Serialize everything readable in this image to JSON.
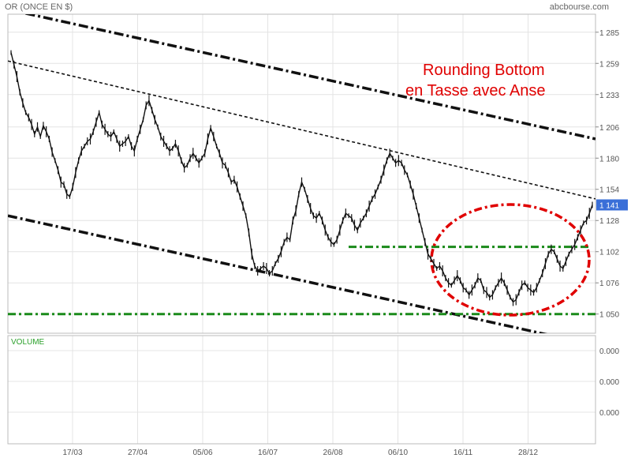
{
  "header": {
    "instrument": "OR (ONCE EN $)",
    "source": "abcbourse.com"
  },
  "annotation": {
    "line1": "Rounding Bottom",
    "line2": "en Tasse avec Anse",
    "color": "#e00000"
  },
  "volume_panel": {
    "label": "VOLUME",
    "ticks": [
      "0.000",
      "0.000",
      "0.000"
    ]
  },
  "colors": {
    "price": "#111111",
    "grid": "#e4e4e4",
    "support": "#1a8a1a",
    "last_price_badge": "#3a6fd8",
    "ellipse": "#e00000"
  },
  "chart_data": {
    "type": "line",
    "title": "OR (ONCE EN $)",
    "x_tick_labels": [
      "17/03",
      "27/04",
      "05/06",
      "16/07",
      "26/08",
      "06/10",
      "16/11",
      "28/12"
    ],
    "y_ticks": [
      1285,
      1259,
      1233,
      1206,
      1180,
      1154,
      1128,
      1102,
      1076,
      1050
    ],
    "y_tick_labels": [
      "1 285",
      "1 259",
      "1 233",
      "1 206",
      "1 180",
      "1 154",
      "1 128",
      "1 102",
      "1 076",
      "1 050"
    ],
    "ylim": [
      1034,
      1300
    ],
    "last_price": 1141,
    "last_price_label": "1 141",
    "grid": true,
    "series": [
      {
        "values": [
          1268,
          1258,
          1248,
          1235,
          1226,
          1218,
          1214,
          1208,
          1200,
          1206,
          1198,
          1207,
          1202,
          1196,
          1185,
          1178,
          1170,
          1160,
          1158,
          1150,
          1148,
          1156,
          1168,
          1178,
          1186,
          1190,
          1194,
          1196,
          1202,
          1210,
          1218,
          1208,
          1204,
          1200,
          1198,
          1202,
          1196,
          1190,
          1192,
          1194,
          1198,
          1190,
          1186,
          1196,
          1204,
          1212,
          1224,
          1228,
          1220,
          1212,
          1206,
          1198,
          1194,
          1190,
          1186,
          1188,
          1192,
          1186,
          1178,
          1172,
          1174,
          1180,
          1184,
          1180,
          1176,
          1180,
          1184,
          1196,
          1205,
          1198,
          1190,
          1184,
          1176,
          1174,
          1168,
          1160,
          1162,
          1156,
          1148,
          1140,
          1132,
          1118,
          1100,
          1090,
          1086,
          1088,
          1090,
          1088,
          1084,
          1086,
          1092,
          1096,
          1102,
          1110,
          1114,
          1112,
          1128,
          1136,
          1150,
          1160,
          1154,
          1146,
          1138,
          1132,
          1130,
          1134,
          1128,
          1120,
          1114,
          1110,
          1108,
          1112,
          1120,
          1128,
          1134,
          1132,
          1130,
          1124,
          1120,
          1126,
          1130,
          1134,
          1140,
          1146,
          1150,
          1156,
          1162,
          1170,
          1178,
          1184,
          1180,
          1176,
          1178,
          1176,
          1170,
          1166,
          1158,
          1150,
          1140,
          1130,
          1120,
          1110,
          1100,
          1096,
          1092,
          1088,
          1090,
          1086,
          1080,
          1076,
          1074,
          1078,
          1082,
          1078,
          1072,
          1070,
          1066,
          1070,
          1074,
          1080,
          1078,
          1070,
          1068,
          1064,
          1066,
          1072,
          1076,
          1080,
          1076,
          1070,
          1064,
          1060,
          1062,
          1068,
          1074,
          1076,
          1072,
          1070,
          1068,
          1072,
          1078,
          1084,
          1092,
          1100,
          1104,
          1102,
          1096,
          1090,
          1088,
          1094,
          1100,
          1104,
          1108,
          1114,
          1120,
          1126,
          1128,
          1134,
          1141
        ]
      }
    ],
    "reference_lines": [
      {
        "kind": "resistance-dashed",
        "start": 1261,
        "end": 1146
      },
      {
        "kind": "channel-upper",
        "start": 1304,
        "end": 1196
      },
      {
        "kind": "channel-lower",
        "start": 1132,
        "end": 1024
      },
      {
        "kind": "neckline",
        "value": 1106
      },
      {
        "kind": "support",
        "value": 1050
      }
    ]
  }
}
